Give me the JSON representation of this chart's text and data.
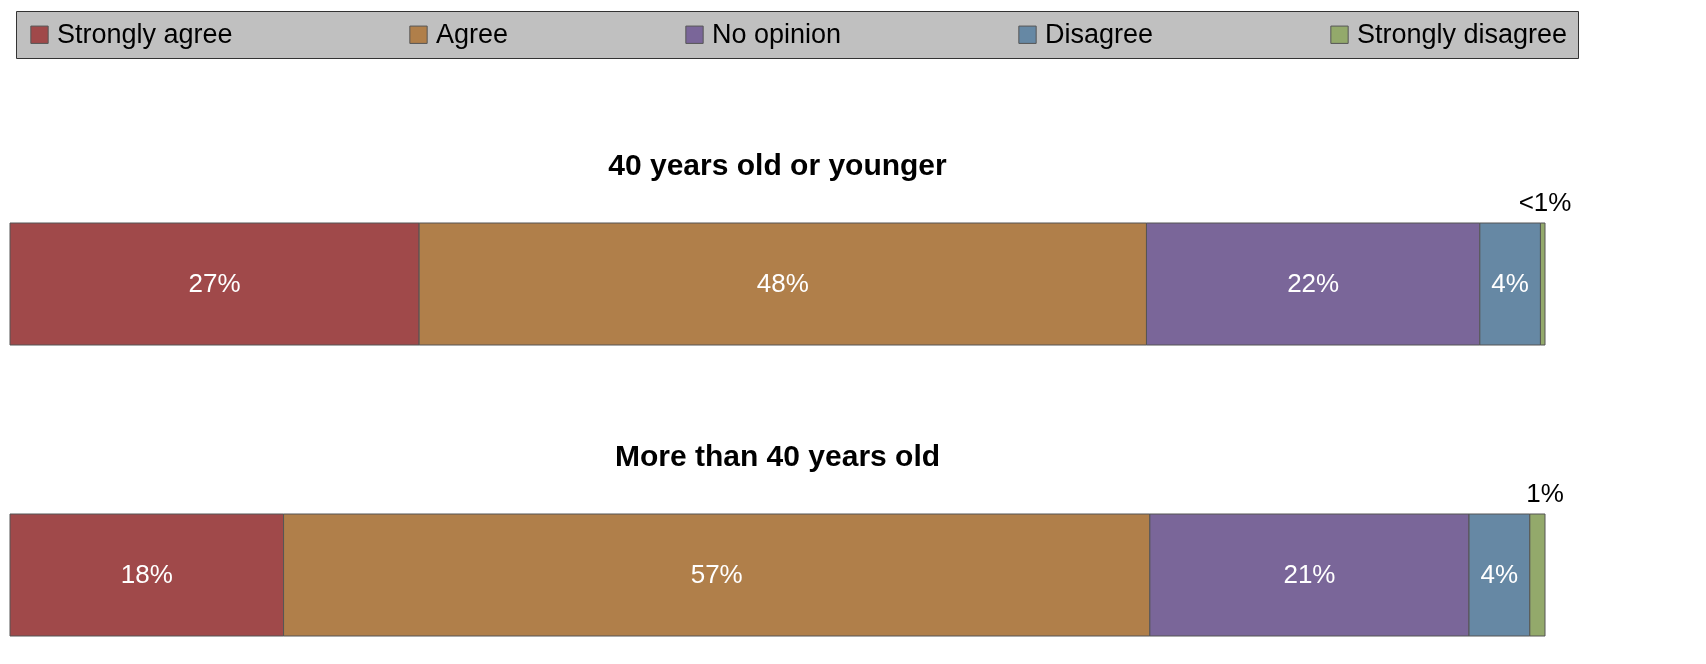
{
  "chart_data": [
    {
      "type": "bar",
      "orientation": "horizontal",
      "stacked": true,
      "title": "40 years old or younger",
      "categories": [
        null
      ],
      "legend": "top",
      "series": [
        {
          "name": "Strongly agree",
          "color": "#a0494a",
          "values": [
            27
          ],
          "value_labels": [
            "27%"
          ]
        },
        {
          "name": "Agree",
          "color": "#b07f4a",
          "values": [
            48
          ],
          "value_labels": [
            "48%"
          ]
        },
        {
          "name": "No opinion",
          "color": "#7a6699",
          "values": [
            22
          ],
          "value_labels": [
            "22%"
          ]
        },
        {
          "name": "Disagree",
          "color": "#6688a4",
          "values": [
            4
          ],
          "value_labels": [
            "4%"
          ]
        },
        {
          "name": "Strongly disagree",
          "color": "#93a96b",
          "values": [
            0.3
          ],
          "value_labels": [
            "<1%"
          ]
        }
      ]
    },
    {
      "type": "bar",
      "orientation": "horizontal",
      "stacked": true,
      "title": "More than 40 years old",
      "categories": [
        null
      ],
      "series": [
        {
          "color": "#a0494a",
          "values": [
            18
          ],
          "value_labels": [
            "18%"
          ]
        },
        {
          "color": "#b07f4a",
          "values": [
            57
          ],
          "value_labels": [
            "57%"
          ]
        },
        {
          "color": "#7a6699",
          "values": [
            21
          ],
          "value_labels": [
            "21%"
          ]
        },
        {
          "color": "#6688a4",
          "values": [
            4
          ],
          "value_labels": [
            "4%"
          ]
        },
        {
          "color": "#93a96b",
          "values": [
            1
          ],
          "value_labels": [
            "1%"
          ]
        }
      ]
    }
  ]
}
